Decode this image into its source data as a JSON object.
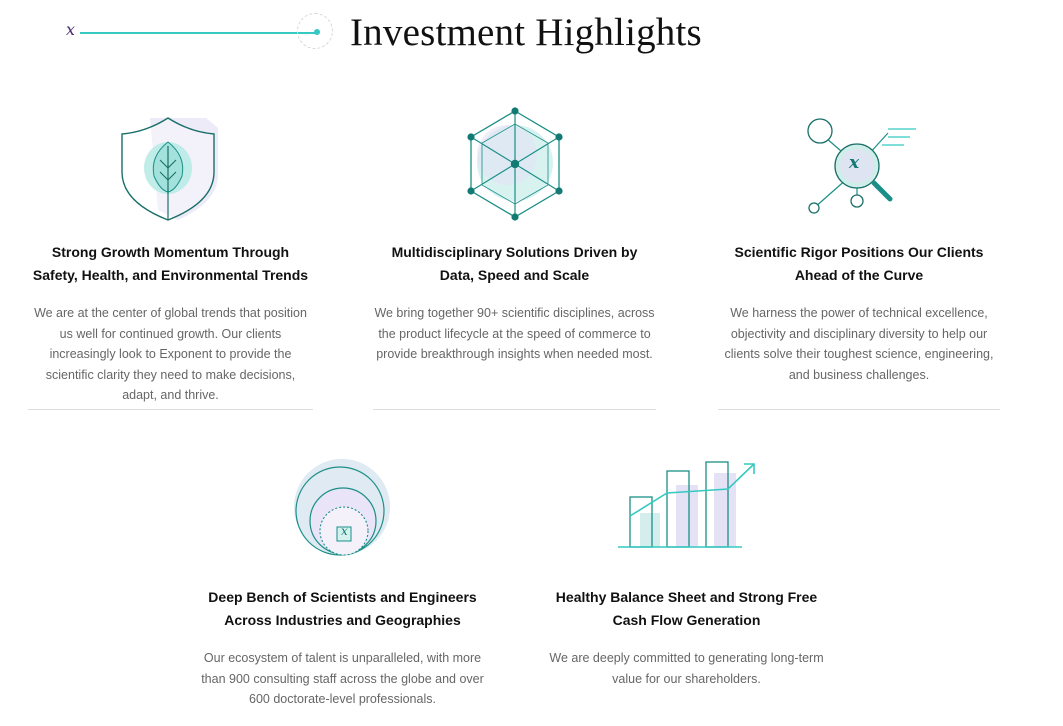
{
  "header": {
    "mark": "x",
    "title": "Investment Highlights"
  },
  "highlights": [
    {
      "icon": "shield-leaf-icon",
      "title": "Strong Growth Momentum Through Safety, Health, and Environmental Trends",
      "body": "We are at the center of global trends that position us well for continued growth. Our clients increasingly look to Exponent to provide the scientific clarity they need to make decisions, adapt, and thrive."
    },
    {
      "icon": "hexagon-network-icon",
      "title": "Multidisciplinary Solutions Driven by Data, Speed and Scale",
      "body": "We bring together 90+ scientific disciplines, across the product lifecycle at the speed of commerce to provide breakthrough insights when needed most."
    },
    {
      "icon": "magnifier-network-icon",
      "mark": "x",
      "title": "Scientific Rigor Positions Our Clients Ahead of the Curve",
      "body": "We harness the power of technical excellence, objectivity and disciplinary diversity to help our clients solve their toughest science, engineering, and business challenges."
    },
    {
      "icon": "concentric-circles-icon",
      "mark": "x",
      "title": "Deep Bench of Scientists and Engineers Across Industries and Geographies",
      "body": "Our ecosystem of talent is unparalleled, with more than 900 consulting staff across the globe and over 600 doctorate-level professionals."
    },
    {
      "icon": "bar-growth-icon",
      "title": "Healthy Balance Sheet and Strong Free Cash Flow Generation",
      "body": "We are deeply committed to generating long-term value for our shareholders."
    }
  ],
  "colors": {
    "teal": "#1a8f87",
    "accent": "#35c9c1",
    "title": "#111111",
    "body": "#666666",
    "rule": "#dedede"
  }
}
